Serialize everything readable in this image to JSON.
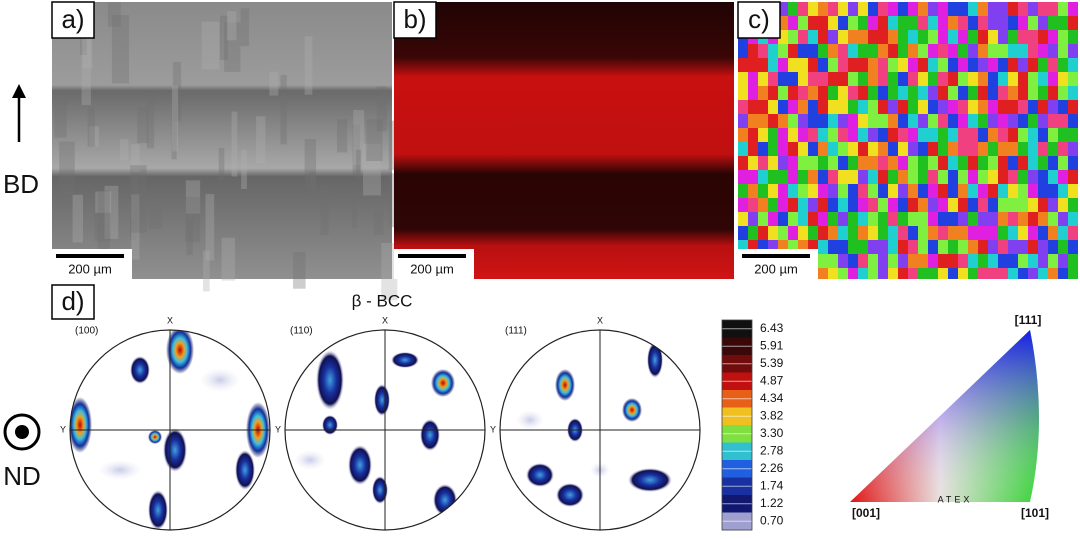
{
  "panels": [
    {
      "label": "a)",
      "scale_bar": "200 µm"
    },
    {
      "label": "b)",
      "scale_bar": "200 µm"
    },
    {
      "label": "c)",
      "scale_bar": "200 µm"
    }
  ],
  "sample_axes": {
    "bd": "BD",
    "nd": "ND"
  },
  "panel_d": {
    "label": "d)",
    "title": "β - BCC",
    "pole_figures": [
      {
        "label": "(100)",
        "x_axis": "X",
        "y_axis": "Y"
      },
      {
        "label": "(110)",
        "x_axis": "X",
        "y_axis": "Y"
      },
      {
        "label": "(111)",
        "x_axis": "X",
        "y_axis": "Y"
      }
    ],
    "colorbar": [
      "6.43",
      "5.91",
      "5.39",
      "4.87",
      "4.34",
      "3.82",
      "3.30",
      "2.78",
      "2.26",
      "1.74",
      "1.22",
      "0.70"
    ]
  },
  "ipf": {
    "corners": [
      "[111]",
      "[001]",
      "[101]"
    ],
    "watermark": "ATEX"
  }
}
